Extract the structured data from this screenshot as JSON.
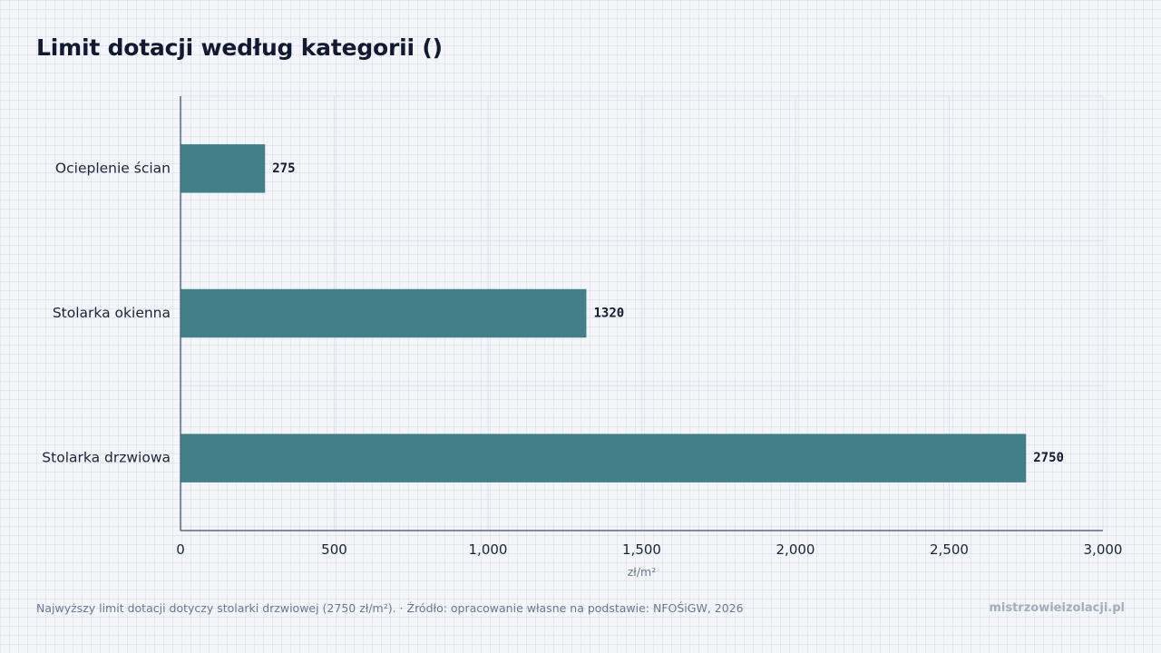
{
  "title": "Limit dotacji według kategorii ()",
  "footer": {
    "note": "Najwyższy limit dotacji dotyczy stolarki drzwiowej (2750 zł/m²). · Źródło: opracowanie własne na podstawie: NFOŚiGW, 2026",
    "brand": "mistrzowieizolacji.pl"
  },
  "chart_data": {
    "type": "bar",
    "orientation": "horizontal",
    "categories": [
      "Ocieplenie ścian",
      "Stolarka okienna",
      "Stolarka drzwiowa"
    ],
    "values": [
      275,
      1320,
      2750
    ],
    "data_labels": [
      "275",
      "1320",
      "2750"
    ],
    "xlabel": "zł/m²",
    "ylabel": "",
    "xlim": [
      0,
      3000
    ],
    "x_ticks": [
      0,
      500,
      1000,
      1500,
      2000,
      2500,
      3000
    ],
    "x_tick_labels": [
      "0",
      "500",
      "1,000",
      "1,500",
      "2,000",
      "2,500",
      "3,000"
    ],
    "bar_color": "#417f89",
    "axis_color": "#5c6a80",
    "grid": true
  }
}
